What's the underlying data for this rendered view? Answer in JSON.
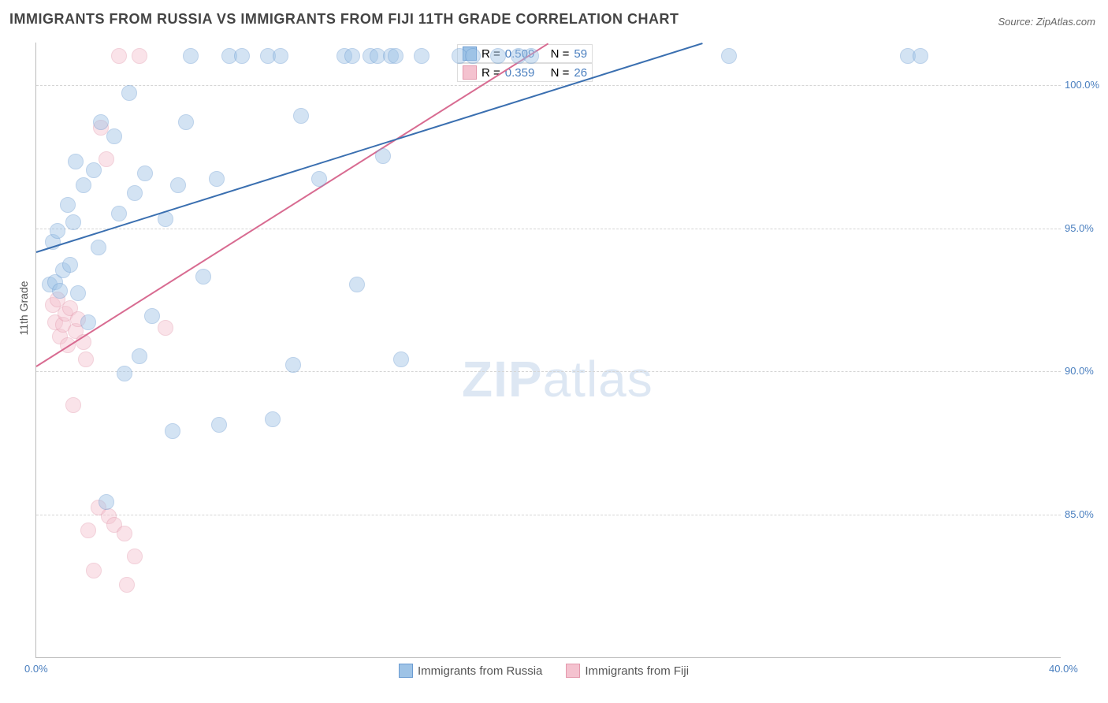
{
  "page": {
    "title": "IMMIGRANTS FROM RUSSIA VS IMMIGRANTS FROM FIJI 11TH GRADE CORRELATION CHART",
    "source_label": "Source: ",
    "source_name": "ZipAtlas.com",
    "watermark_bold": "ZIP",
    "watermark_rest": "atlas"
  },
  "chart": {
    "type": "scatter",
    "ylabel": "11th Grade",
    "xlim": [
      0,
      40
    ],
    "ylim": [
      80,
      101.5
    ],
    "xticks": [
      {
        "v": 0,
        "label": "0.0%"
      },
      {
        "v": 40,
        "label": "40.0%"
      }
    ],
    "yticks": [
      {
        "v": 85,
        "label": "85.0%"
      },
      {
        "v": 90,
        "label": "90.0%"
      },
      {
        "v": 95,
        "label": "95.0%"
      },
      {
        "v": 100,
        "label": "100.0%"
      }
    ],
    "plot_bg": "#ffffff",
    "grid_color": "#d5d5d5",
    "axis_color": "#bbbbbb",
    "label_fontsize": 14,
    "tick_fontsize": 13,
    "tick_color": "#4a7fbf",
    "marker_radius": 9,
    "marker_opacity": 0.45
  },
  "series": {
    "russia": {
      "label": "Immigrants from Russia",
      "fill": "#9ec3e6",
      "stroke": "#6a9bd1",
      "line_color": "#3a6fb0",
      "line_width": 2,
      "R": "0.509",
      "N": "59",
      "trend": {
        "x1": 0,
        "y1": 94.2,
        "x2": 26,
        "y2": 101.5
      },
      "points": [
        [
          0.5,
          93.3
        ],
        [
          0.6,
          94.8
        ],
        [
          0.7,
          93.4
        ],
        [
          0.8,
          95.2
        ],
        [
          0.9,
          93.1
        ],
        [
          1.0,
          93.8
        ],
        [
          1.2,
          96.1
        ],
        [
          1.3,
          94.0
        ],
        [
          1.4,
          95.5
        ],
        [
          1.5,
          97.6
        ],
        [
          1.6,
          93.0
        ],
        [
          1.8,
          96.8
        ],
        [
          2.0,
          92.0
        ],
        [
          2.2,
          97.3
        ],
        [
          2.4,
          94.6
        ],
        [
          2.5,
          99.0
        ],
        [
          2.7,
          85.7
        ],
        [
          3.0,
          98.5
        ],
        [
          3.2,
          95.8
        ],
        [
          3.4,
          90.2
        ],
        [
          3.6,
          100.0
        ],
        [
          3.8,
          96.5
        ],
        [
          4.0,
          90.8
        ],
        [
          4.2,
          97.2
        ],
        [
          4.5,
          92.2
        ],
        [
          5.0,
          95.6
        ],
        [
          5.3,
          88.2
        ],
        [
          5.5,
          96.8
        ],
        [
          5.8,
          99.0
        ],
        [
          6.0,
          101.3
        ],
        [
          6.5,
          93.6
        ],
        [
          7.0,
          97.0
        ],
        [
          7.1,
          88.4
        ],
        [
          7.5,
          101.3
        ],
        [
          8.0,
          101.3
        ],
        [
          9.0,
          101.3
        ],
        [
          9.2,
          88.6
        ],
        [
          9.5,
          101.3
        ],
        [
          10.0,
          90.5
        ],
        [
          10.3,
          99.2
        ],
        [
          11.0,
          97.0
        ],
        [
          12.0,
          101.3
        ],
        [
          12.3,
          101.3
        ],
        [
          12.5,
          93.3
        ],
        [
          13.0,
          101.3
        ],
        [
          13.3,
          101.3
        ],
        [
          13.5,
          97.8
        ],
        [
          13.8,
          101.3
        ],
        [
          14.0,
          101.3
        ],
        [
          14.2,
          90.7
        ],
        [
          15.0,
          101.3
        ],
        [
          16.5,
          101.3
        ],
        [
          17.0,
          101.3
        ],
        [
          18.0,
          101.3
        ],
        [
          18.8,
          101.3
        ],
        [
          19.3,
          101.3
        ],
        [
          27.0,
          101.3
        ],
        [
          34.0,
          101.3
        ],
        [
          34.5,
          101.3
        ]
      ]
    },
    "fiji": {
      "label": "Immigrants from Fiji",
      "fill": "#f4c2cf",
      "stroke": "#e398ac",
      "line_color": "#d86b91",
      "line_width": 2,
      "R": "0.359",
      "N": "26",
      "trend": {
        "x1": 0,
        "y1": 90.2,
        "x2": 20,
        "y2": 101.5
      },
      "points": [
        [
          0.6,
          92.6
        ],
        [
          0.7,
          92.0
        ],
        [
          0.8,
          92.8
        ],
        [
          0.9,
          91.5
        ],
        [
          1.0,
          91.9
        ],
        [
          1.1,
          92.3
        ],
        [
          1.2,
          91.2
        ],
        [
          1.3,
          92.5
        ],
        [
          1.4,
          89.1
        ],
        [
          1.5,
          91.7
        ],
        [
          1.6,
          92.1
        ],
        [
          1.8,
          91.3
        ],
        [
          1.9,
          90.7
        ],
        [
          2.0,
          84.7
        ],
        [
          2.2,
          83.3
        ],
        [
          2.4,
          85.5
        ],
        [
          2.5,
          98.8
        ],
        [
          2.7,
          97.7
        ],
        [
          2.8,
          85.2
        ],
        [
          3.0,
          84.9
        ],
        [
          3.2,
          101.3
        ],
        [
          3.4,
          84.6
        ],
        [
          3.5,
          82.8
        ],
        [
          3.8,
          83.8
        ],
        [
          4.0,
          101.3
        ],
        [
          5.0,
          91.8
        ]
      ]
    }
  },
  "legend_box": {
    "r_label": "R =",
    "n_label": "N ="
  }
}
